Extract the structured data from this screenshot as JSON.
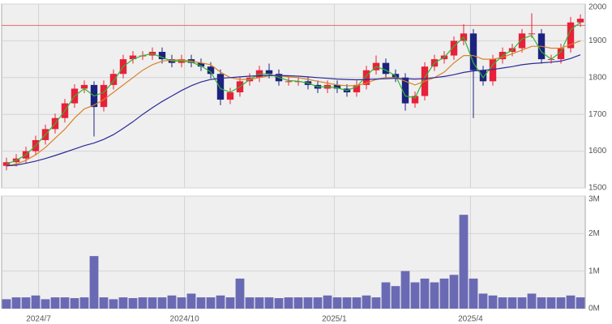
{
  "chart_data": [
    {
      "type": "candlestick",
      "xlim": [
        -0.5,
        59.5
      ],
      "ylim": [
        1500,
        2000
      ],
      "yticks": [
        1500,
        1600,
        1700,
        1800,
        1900,
        2000
      ],
      "grid": true,
      "up_color": "#e8203a",
      "down_color": "#1c237e",
      "reference_line": 1942,
      "reference_color": "#e86a6a",
      "open": [
        1560,
        1570,
        1580,
        1600,
        1630,
        1660,
        1690,
        1730,
        1770,
        1780,
        1720,
        1780,
        1810,
        1850,
        1860,
        1860,
        1870,
        1850,
        1840,
        1850,
        1840,
        1830,
        1810,
        1740,
        1760,
        1790,
        1800,
        1820,
        1810,
        1790,
        1790,
        1790,
        1780,
        1770,
        1780,
        1770,
        1760,
        1780,
        1820,
        1840,
        1810,
        1800,
        1730,
        1750,
        1830,
        1850,
        1860,
        1900,
        1920,
        1820,
        1790,
        1850,
        1870,
        1880,
        1920,
        1920,
        1850,
        1850,
        1880,
        1950
      ],
      "high": [
        1582,
        1592,
        1612,
        1642,
        1672,
        1702,
        1742,
        1782,
        1792,
        1790,
        1792,
        1822,
        1862,
        1872,
        1872,
        1882,
        1882,
        1862,
        1862,
        1862,
        1852,
        1842,
        1822,
        1772,
        1802,
        1812,
        1832,
        1838,
        1822,
        1802,
        1802,
        1802,
        1792,
        1792,
        1792,
        1782,
        1792,
        1832,
        1860,
        1852,
        1822,
        1812,
        1762,
        1842,
        1862,
        1872,
        1912,
        1945,
        1932,
        1832,
        1862,
        1882,
        1892,
        1932,
        1975,
        1932,
        1862,
        1892,
        1965,
        1972
      ],
      "low": [
        1548,
        1558,
        1568,
        1588,
        1618,
        1648,
        1678,
        1718,
        1758,
        1640,
        1708,
        1768,
        1798,
        1838,
        1848,
        1848,
        1838,
        1828,
        1828,
        1828,
        1818,
        1798,
        1725,
        1728,
        1748,
        1778,
        1788,
        1798,
        1778,
        1778,
        1778,
        1768,
        1758,
        1758,
        1758,
        1748,
        1748,
        1768,
        1808,
        1798,
        1788,
        1710,
        1718,
        1738,
        1818,
        1838,
        1848,
        1888,
        1690,
        1778,
        1778,
        1838,
        1858,
        1868,
        1908,
        1838,
        1838,
        1838,
        1868,
        1938
      ],
      "close": [
        1570,
        1580,
        1600,
        1630,
        1660,
        1690,
        1730,
        1770,
        1780,
        1720,
        1780,
        1810,
        1850,
        1860,
        1860,
        1870,
        1850,
        1840,
        1850,
        1840,
        1830,
        1810,
        1740,
        1760,
        1790,
        1800,
        1820,
        1810,
        1790,
        1790,
        1790,
        1780,
        1770,
        1780,
        1770,
        1760,
        1780,
        1820,
        1840,
        1810,
        1800,
        1730,
        1750,
        1830,
        1850,
        1860,
        1900,
        1920,
        1820,
        1790,
        1850,
        1870,
        1880,
        1920,
        1920,
        1850,
        1850,
        1880,
        1950,
        1960
      ],
      "series": [
        {
          "color": "#2eb82e",
          "values": [
            1565,
            1575,
            1590,
            1615,
            1645,
            1675,
            1710,
            1750,
            1770,
            1750,
            1760,
            1790,
            1830,
            1850,
            1860,
            1865,
            1855,
            1845,
            1845,
            1842,
            1832,
            1815,
            1770,
            1760,
            1775,
            1795,
            1810,
            1810,
            1800,
            1792,
            1790,
            1785,
            1775,
            1775,
            1772,
            1765,
            1775,
            1805,
            1830,
            1820,
            1805,
            1750,
            1745,
            1800,
            1840,
            1855,
            1885,
            1910,
            1840,
            1800,
            1835,
            1860,
            1875,
            1905,
            1915,
            1870,
            1850,
            1870,
            1930,
            1950
          ]
        },
        {
          "color": "#d9822b",
          "values": [
            1560,
            1565,
            1575,
            1590,
            1610,
            1635,
            1660,
            1690,
            1715,
            1725,
            1740,
            1760,
            1780,
            1800,
            1820,
            1835,
            1845,
            1848,
            1848,
            1845,
            1840,
            1835,
            1815,
            1800,
            1795,
            1795,
            1800,
            1805,
            1805,
            1802,
            1800,
            1795,
            1790,
            1785,
            1780,
            1778,
            1778,
            1785,
            1795,
            1800,
            1800,
            1790,
            1780,
            1790,
            1800,
            1815,
            1840,
            1860,
            1860,
            1850,
            1850,
            1855,
            1865,
            1875,
            1885,
            1885,
            1880,
            1880,
            1890,
            1900
          ]
        },
        {
          "color": "#2a2a9a",
          "values": [
            1560,
            1562,
            1567,
            1573,
            1580,
            1588,
            1597,
            1606,
            1615,
            1622,
            1632,
            1645,
            1662,
            1680,
            1700,
            1718,
            1735,
            1750,
            1765,
            1778,
            1788,
            1795,
            1798,
            1800,
            1802,
            1804,
            1805,
            1806,
            1806,
            1805,
            1804,
            1802,
            1800,
            1798,
            1796,
            1795,
            1794,
            1795,
            1796,
            1797,
            1798,
            1797,
            1796,
            1797,
            1800,
            1803,
            1808,
            1814,
            1818,
            1820,
            1822,
            1826,
            1830,
            1835,
            1838,
            1840,
            1842,
            1845,
            1852,
            1862
          ]
        }
      ]
    },
    {
      "type": "bar",
      "xlim": [
        -0.5,
        59.5
      ],
      "ylim": [
        0,
        3
      ],
      "yticks": [
        {
          "value": 0,
          "label": "0M"
        },
        {
          "value": 1,
          "label": "1M"
        },
        {
          "value": 2,
          "label": "2M"
        },
        {
          "value": 3,
          "label": "3M"
        }
      ],
      "xticks": [
        {
          "value": 3.3,
          "label": "2024/7"
        },
        {
          "value": 18.3,
          "label": "2024/10"
        },
        {
          "value": 33.7,
          "label": "2025/1"
        },
        {
          "value": 47.7,
          "label": "2025/4"
        }
      ],
      "grid": true,
      "color": "#6a6ab4",
      "values": [
        0.25,
        0.3,
        0.3,
        0.35,
        0.25,
        0.3,
        0.3,
        0.28,
        0.3,
        1.4,
        0.3,
        0.25,
        0.3,
        0.28,
        0.3,
        0.3,
        0.3,
        0.35,
        0.3,
        0.4,
        0.3,
        0.3,
        0.35,
        0.3,
        0.8,
        0.3,
        0.3,
        0.3,
        0.28,
        0.3,
        0.3,
        0.3,
        0.3,
        0.35,
        0.3,
        0.3,
        0.3,
        0.35,
        0.3,
        0.7,
        0.6,
        1.0,
        0.7,
        0.8,
        0.7,
        0.8,
        0.9,
        2.5,
        0.8,
        0.4,
        0.35,
        0.3,
        0.3,
        0.3,
        0.4,
        0.3,
        0.3,
        0.3,
        0.35,
        0.3
      ]
    }
  ]
}
